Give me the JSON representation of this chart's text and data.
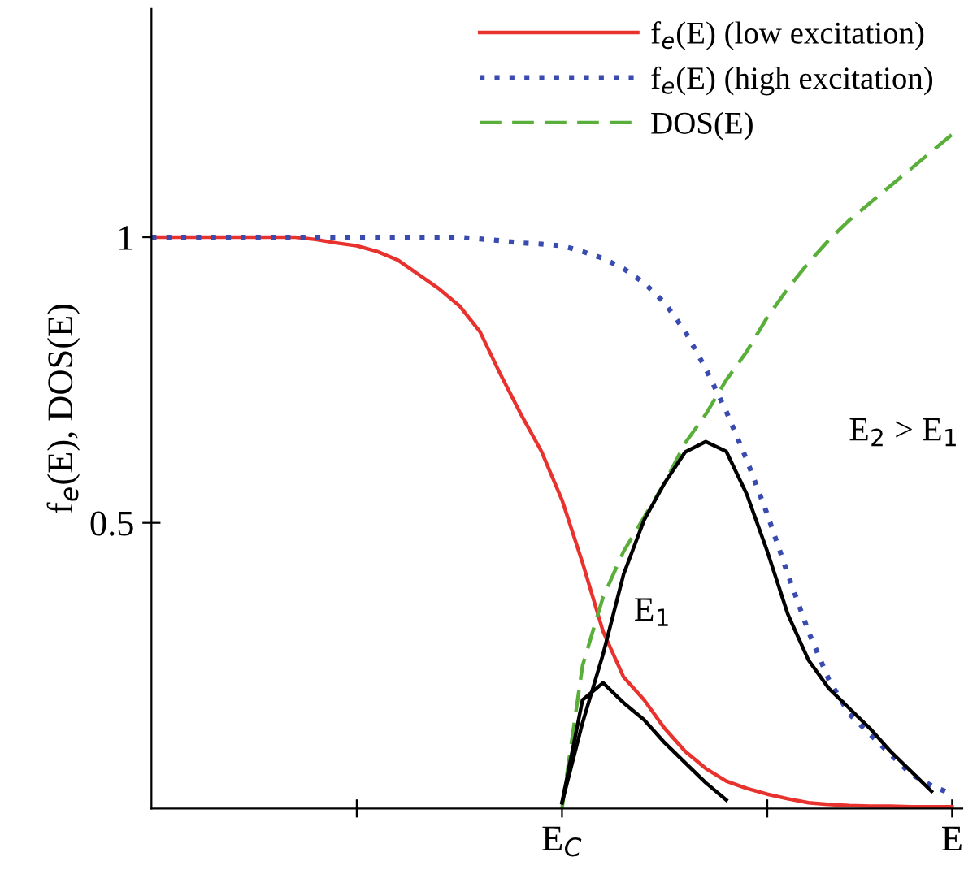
{
  "chart_data": {
    "type": "line",
    "ylabel": "f$_{e}$(E), DOS(E)",
    "categories": [
      null,
      null,
      null,
      null,
      null,
      null,
      null,
      null,
      null,
      null,
      null,
      null,
      null,
      null,
      null,
      null,
      null,
      null,
      null,
      null,
      "E$_{C}$",
      null,
      null,
      null,
      null,
      null,
      null,
      null,
      null,
      null,
      null,
      null,
      null,
      null,
      null,
      null,
      null,
      null,
      null,
      "E"
    ],
    "ylim": [
      0,
      1.4
    ],
    "yticks": [
      0.5,
      1
    ],
    "grid": false,
    "legend": "top right",
    "series": [
      {
        "name": "f$_{e}$(E) (low excitation)",
        "color": "#e8322e",
        "line_style": "solid",
        "values": [
          1,
          1,
          1,
          1,
          1,
          1,
          1,
          1,
          0.996,
          0.99,
          0.985,
          0.975,
          0.96,
          0.935,
          0.91,
          0.88,
          0.835,
          0.76,
          0.69,
          0.625,
          0.54,
          0.43,
          0.31,
          0.23,
          0.19,
          0.14,
          0.1,
          0.07,
          0.048,
          0.035,
          0.025,
          0.017,
          0.01,
          0.007,
          0.005,
          0.004,
          0.004,
          0.003,
          0.003,
          0.003
        ]
      },
      {
        "name": "f$_{e}$(E) (high excitation)",
        "color": "#3a4bb0",
        "line_style": "dotted",
        "values": [
          1,
          1,
          1,
          1,
          1,
          1,
          1,
          1,
          1,
          1,
          1,
          1,
          1,
          1,
          1,
          1,
          0.997,
          0.994,
          0.99,
          0.988,
          0.985,
          0.975,
          0.963,
          0.945,
          0.92,
          0.885,
          0.835,
          0.77,
          0.695,
          0.61,
          0.515,
          0.41,
          0.31,
          0.225,
          0.165,
          0.13,
          0.095,
          0.06,
          0.04,
          0.025
        ]
      },
      {
        "name": "DOS(E)",
        "color": "#5aaf3a",
        "line_style": "dashed",
        "values": [
          null,
          null,
          null,
          null,
          null,
          null,
          null,
          null,
          null,
          null,
          null,
          null,
          null,
          null,
          null,
          null,
          null,
          null,
          null,
          null,
          0,
          0.25,
          0.37,
          0.45,
          0.51,
          0.57,
          0.64,
          0.69,
          0.75,
          0.8,
          0.86,
          0.91,
          0.955,
          0.995,
          1.03,
          1.06,
          1.09,
          1.12,
          1.15,
          1.18
        ]
      },
      {
        "color": "#000000",
        "line_style": "solid",
        "values": [
          null,
          null,
          null,
          null,
          null,
          null,
          null,
          null,
          null,
          null,
          null,
          null,
          null,
          null,
          null,
          null,
          null,
          null,
          null,
          null,
          0.01,
          0.19,
          0.22,
          0.185,
          0.155,
          0.115,
          0.08,
          0.045,
          0.015,
          null,
          null,
          null,
          null,
          null,
          null,
          null,
          null,
          null,
          null,
          null
        ]
      },
      {
        "color": "#000000",
        "line_style": "solid",
        "values": [
          null,
          null,
          null,
          null,
          null,
          null,
          null,
          null,
          null,
          null,
          null,
          null,
          null,
          null,
          null,
          null,
          null,
          null,
          null,
          null,
          0.01,
          0.15,
          0.27,
          0.41,
          0.505,
          0.57,
          0.624,
          0.642,
          0.625,
          0.55,
          0.45,
          0.34,
          0.26,
          0.21,
          0.175,
          0.14,
          0.1,
          0.065,
          0.03,
          null
        ]
      }
    ],
    "annotations": [
      "E$_{1}$",
      "E$_{2}$ > E$_{1}$"
    ]
  }
}
